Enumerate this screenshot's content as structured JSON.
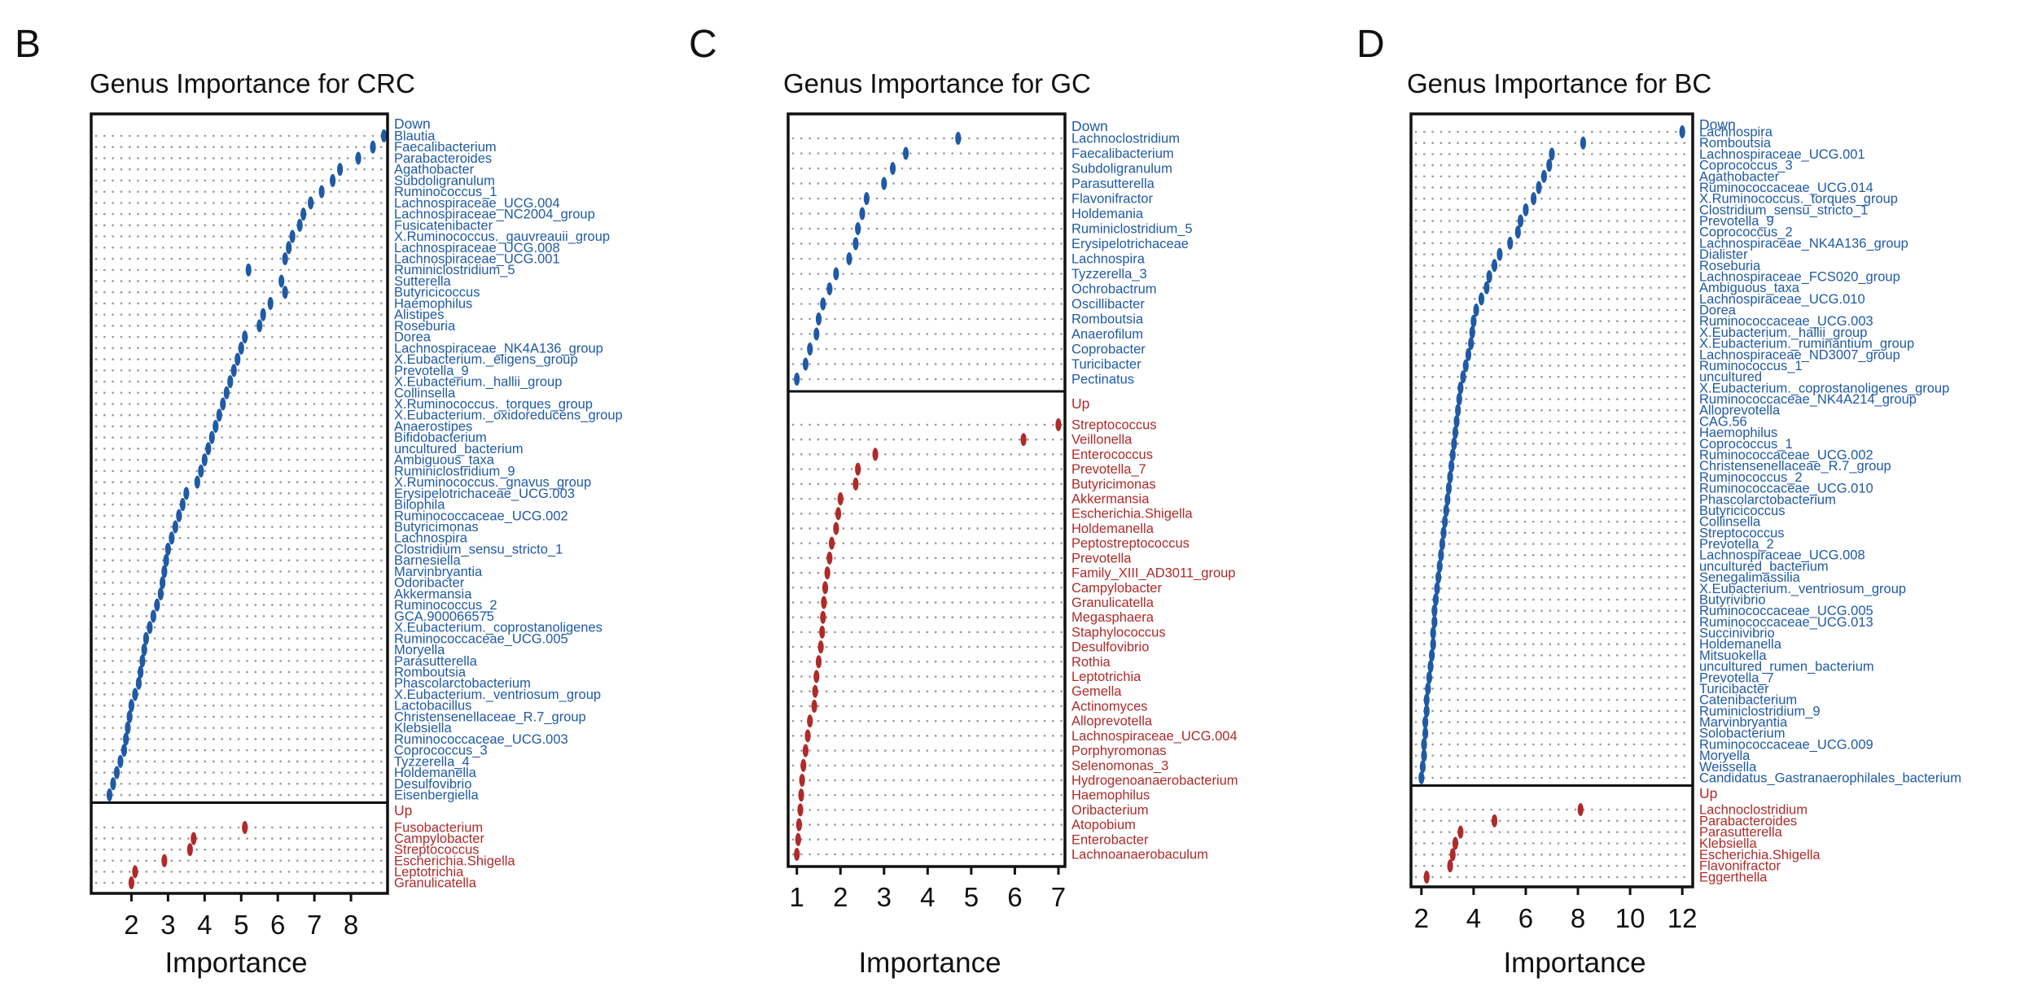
{
  "colors": {
    "down": "#1f5aa6",
    "up": "#b02a2a",
    "dot": "#9a9a9a",
    "frame": "#111111"
  },
  "chart_data": [
    {
      "type": "scatter",
      "panel_letter": "B",
      "title": "Genus Importance for CRC",
      "xlabel": "Importance",
      "ylabel": "",
      "xlim": [
        0.9,
        9.0
      ],
      "xticks": [
        2,
        3,
        4,
        5,
        6,
        7,
        8
      ],
      "xtick_labels": [
        "2",
        "3",
        "4",
        "5",
        "6",
        "7",
        "8"
      ],
      "groups": [
        {
          "name": "Down",
          "genera": [
            "Blautia",
            "Faecalibacterium",
            "Parabacteroides",
            "Agathobacter",
            "Subdoligranulum",
            "Ruminococcus_1",
            "Lachnospiraceae_UCG.004",
            "Lachnospiraceae_NC2004_group",
            "Fusicatenibacter",
            "X.Ruminococcus._gauvreauii_group",
            "Lachnospiraceae_UCG.008",
            "Lachnospiraceae_UCG.001",
            "Ruminiclostridium_5",
            "Sutterella",
            "Butyricicoccus",
            "Haemophilus",
            "Alistipes",
            "Roseburia",
            "Dorea",
            "Lachnospiraceae_NK4A136_group",
            "X.Eubacterium._eligens_group",
            "Prevotella_9",
            "X.Eubacterium._hallii_group",
            "Collinsella",
            "X.Ruminococcus._torques_group",
            "X.Eubacterium._oxidoreducens_group",
            "Anaerostipes",
            "Bifidobacterium",
            "uncultured_bacterium",
            "Ambiguous_taxa",
            "Ruminiclostridium_9",
            "X.Ruminococcus._gnavus_group",
            "Erysipelotrichaceae_UCG.003",
            "Bilophila",
            "Ruminococcaceae_UCG.002",
            "Butyricimonas",
            "Lachnospira",
            "Clostridium_sensu_stricto_1",
            "Barnesiella",
            "Marvinbryantia",
            "Odoribacter",
            "Akkermansia",
            "Ruminococcus_2",
            "GCA.900066575",
            "X.Eubacterium._coprostanoligenes",
            "Ruminococcaceae_UCG.005",
            "Moryella",
            "Parasutterella",
            "Romboutsia",
            "Phascolarctobacterium",
            "X.Eubacterium._ventriosum_group",
            "Lactobacillus",
            "Christensenellaceae_R.7_group",
            "Klebsiella",
            "Ruminococcaceae_UCG.003",
            "Coprococcus_3",
            "Tyzzerella_4",
            "Holdemanella",
            "Desulfovibrio",
            "Eisenbergiella"
          ],
          "values": [
            8.9,
            8.6,
            8.2,
            7.7,
            7.5,
            7.2,
            6.9,
            6.7,
            6.6,
            6.4,
            6.3,
            6.2,
            5.2,
            6.1,
            6.2,
            5.8,
            5.6,
            5.5,
            5.1,
            5.0,
            4.9,
            4.8,
            4.7,
            4.6,
            4.5,
            4.4,
            4.3,
            4.2,
            4.1,
            4.0,
            3.9,
            3.8,
            3.5,
            3.4,
            3.3,
            3.2,
            3.1,
            3.0,
            2.95,
            2.9,
            2.85,
            2.8,
            2.7,
            2.6,
            2.5,
            2.4,
            2.35,
            2.3,
            2.25,
            2.2,
            2.1,
            2.0,
            1.95,
            1.9,
            1.85,
            1.8,
            1.7,
            1.6,
            1.5,
            1.4
          ]
        },
        {
          "name": "Up",
          "genera": [
            "Fusobacterium",
            "Campylobacter",
            "Streptococcus",
            "Escherichia.Shigella",
            "Leptotrichia",
            "Granulicatella"
          ],
          "values": [
            5.1,
            3.7,
            3.6,
            2.9,
            2.1,
            2.0
          ]
        }
      ]
    },
    {
      "type": "scatter",
      "panel_letter": "C",
      "title": "Genus Importance for GC",
      "xlabel": "Importance",
      "ylabel": "",
      "xlim": [
        0.8,
        7.15
      ],
      "xticks": [
        1,
        2,
        3,
        4,
        5,
        6,
        7
      ],
      "xtick_labels": [
        "1",
        "2",
        "3",
        "4",
        "5",
        "6",
        "7"
      ],
      "groups": [
        {
          "name": "Down",
          "genera": [
            "Lachnoclostridium",
            "Faecalibacterium",
            "Subdoligranulum",
            "Parasutterella",
            "Flavonifractor",
            "Holdemania",
            "Ruminiclostridium_5",
            "Erysipelotrichaceae",
            "Lachnospira",
            "Tyzzerella_3",
            "Ochrobactrum",
            "Oscillibacter",
            "Romboutsia",
            "Anaerofilum",
            "Coprobacter",
            "Turicibacter",
            "Pectinatus"
          ],
          "values": [
            4.7,
            3.5,
            3.2,
            3.0,
            2.6,
            2.5,
            2.4,
            2.35,
            2.2,
            1.9,
            1.75,
            1.6,
            1.5,
            1.45,
            1.3,
            1.2,
            1.0
          ]
        },
        {
          "name": "Up",
          "genera": [
            "Streptococcus",
            "Veillonella",
            "Enterococcus",
            "Prevotella_7",
            "Butyricimonas",
            "Akkermansia",
            "Escherichia.Shigella",
            "Holdemanella",
            "Peptostreptococcus",
            "Prevotella",
            "Family_XIII_AD3011_group",
            "Campylobacter",
            "Granulicatella",
            "Megasphaera",
            "Staphylococcus",
            "Desulfovibrio",
            "Rothia",
            "Leptotrichia",
            "Gemella",
            "Actinomyces",
            "Alloprevotella",
            "Lachnospiraceae_UCG.004",
            "Porphyromonas",
            "Selenomonas_3",
            "Hydrogenoanaerobacterium",
            "Haemophilus",
            "Oribacterium",
            "Atopobium",
            "Enterobacter",
            "Lachnoanaerobaculum"
          ],
          "values": [
            7.0,
            6.2,
            2.8,
            2.4,
            2.35,
            2.0,
            1.95,
            1.9,
            1.8,
            1.75,
            1.7,
            1.65,
            1.62,
            1.6,
            1.58,
            1.55,
            1.5,
            1.45,
            1.42,
            1.4,
            1.3,
            1.25,
            1.2,
            1.15,
            1.12,
            1.1,
            1.08,
            1.05,
            1.03,
            1.0
          ]
        }
      ]
    },
    {
      "type": "scatter",
      "panel_letter": "D",
      "title": "Genus Importance for BC",
      "xlabel": "Importance",
      "ylabel": "",
      "xlim": [
        1.6,
        12.4
      ],
      "xticks": [
        2,
        4,
        6,
        8,
        10,
        12
      ],
      "xtick_labels": [
        "2",
        "4",
        "6",
        "8",
        "10",
        "12"
      ],
      "groups": [
        {
          "name": "Down",
          "genera": [
            "Lachnospira",
            "Romboutsia",
            "Lachnospiraceae_UCG.001",
            "Coprococcus_3",
            "Agathobacter",
            "Ruminococcaceae_UCG.014",
            "X.Ruminococcus._torques_group",
            "Clostridium_sensu_stricto_1",
            "Prevotella_9",
            "Coprococcus_2",
            "Lachnospiraceae_NK4A136_group",
            "Dialister",
            "Roseburia",
            "Lachnospiraceae_FCS020_group",
            "Ambiguous_taxa",
            "Lachnospiraceae_UCG.010",
            "Dorea",
            "Ruminococcaceae_UCG.003",
            "X.Eubacterium._hallii_group",
            "X.Eubacterium._ruminantium_group",
            "Lachnospiraceae_ND3007_group",
            "Ruminococcus_1",
            "uncultured",
            "X.Eubacterium._coprostanoligenes_group",
            "Ruminococcaceae_NK4A214_group",
            "Alloprevotella",
            "CAG.56",
            "Haemophilus",
            "Coprococcus_1",
            "Ruminococcaceae_UCG.002",
            "Christensenellaceae_R.7_group",
            "Ruminococcus_2",
            "Ruminococcaceae_UCG.010",
            "Phascolarctobacterium",
            "Butyricicoccus",
            "Collinsella",
            "Streptococcus",
            "Prevotella_2",
            "Lachnospiraceae_UCG.008",
            "uncultured_bacterium",
            "Senegalimassilia",
            "X.Eubacterium._ventriosum_group",
            "Butyrivibrio",
            "Ruminococcaceae_UCG.005",
            "Ruminococcaceae_UCG.013",
            "Succinivibrio",
            "Holdemanella",
            "Mitsuokella",
            "uncultured_rumen_bacterium",
            "Prevotella_7",
            "Turicibacter",
            "Catenibacterium",
            "Ruminiclostridium_9",
            "Marvinbryantia",
            "Solobacterium",
            "Ruminococcaceae_UCG.009",
            "Moryella",
            "Weissella",
            "Candidatus_Gastranaerophilales_bacterium"
          ],
          "values": [
            12.0,
            8.2,
            7.0,
            6.9,
            6.7,
            6.5,
            6.3,
            6.0,
            5.8,
            5.7,
            5.4,
            5.0,
            4.8,
            4.6,
            4.5,
            4.3,
            4.1,
            4.0,
            3.95,
            3.9,
            3.8,
            3.7,
            3.6,
            3.5,
            3.45,
            3.4,
            3.35,
            3.3,
            3.25,
            3.2,
            3.15,
            3.1,
            3.05,
            3.0,
            2.95,
            2.9,
            2.85,
            2.8,
            2.75,
            2.7,
            2.65,
            2.6,
            2.55,
            2.5,
            2.5,
            2.45,
            2.45,
            2.4,
            2.35,
            2.3,
            2.25,
            2.2,
            2.2,
            2.15,
            2.15,
            2.1,
            2.1,
            2.05,
            2.0
          ]
        },
        {
          "name": "Up",
          "genera": [
            "Lachnoclostridium",
            "Parabacteroides",
            "Parasutterella",
            "Klebsiella",
            "Escherichia.Shigella",
            "Flavonifractor",
            "Eggerthella"
          ],
          "values": [
            8.1,
            4.8,
            3.5,
            3.3,
            3.2,
            3.1,
            2.2
          ]
        }
      ]
    }
  ]
}
